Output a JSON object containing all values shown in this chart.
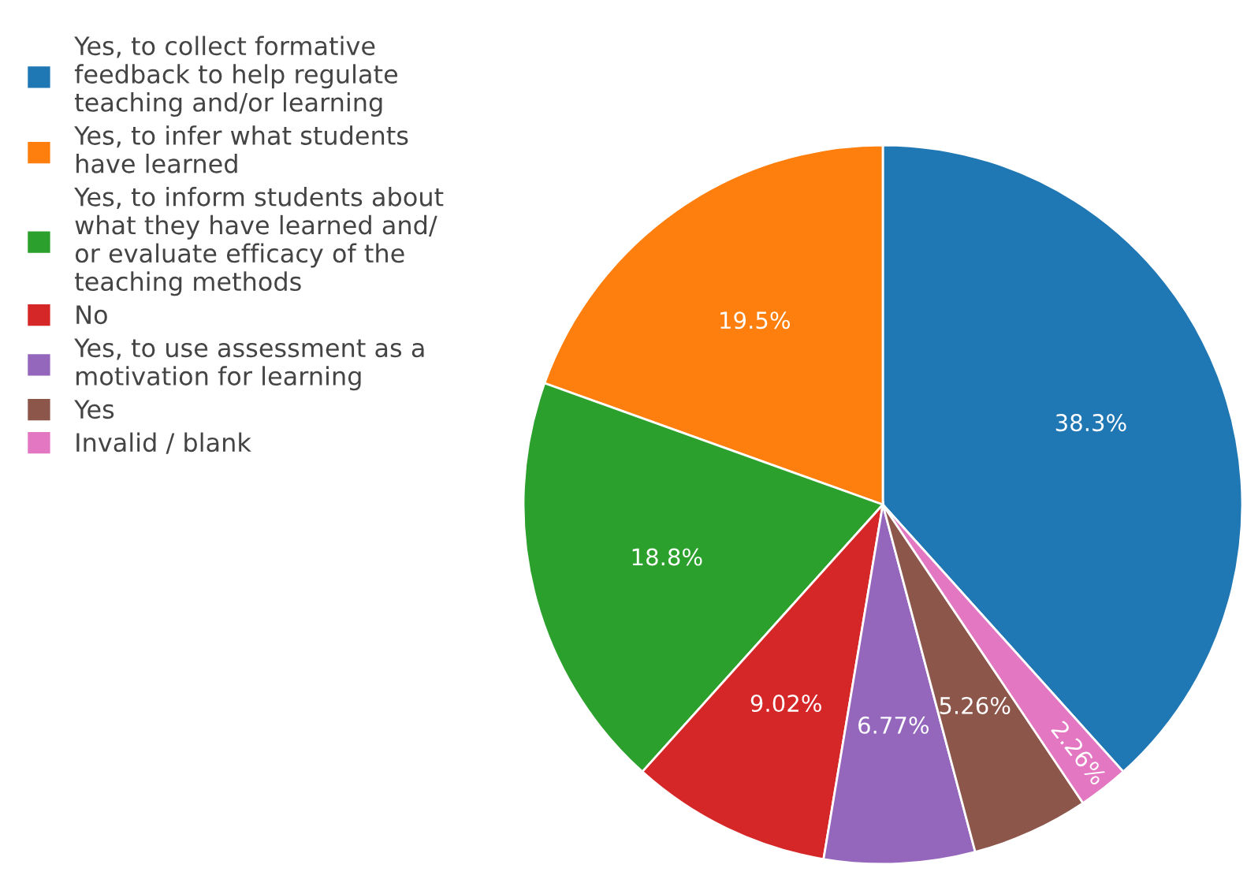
{
  "chart_data": {
    "type": "pie",
    "categories": [
      "Yes, to collect formative\nfeedback to help regulate\nteaching and/or learning",
      "Yes, to infer what students\nhave learned",
      "Yes, to inform students about\nwhat they have learned and/\nor evaluate efficacy of the\nteaching methods",
      "No",
      "Yes, to use assessment as a\nmotivation for learning",
      "Yes",
      "Invalid / blank"
    ],
    "values": [
      38.3,
      19.5,
      18.8,
      9.02,
      6.77,
      5.26,
      2.26
    ],
    "colors": [
      "#1f77b4",
      "#ff7f0e",
      "#2ca02c",
      "#d62728",
      "#9467bd",
      "#8c564b",
      "#e377c2"
    ],
    "value_labels": [
      "38.3%",
      "19.5%",
      "18.8%",
      "9.02%",
      "6.77%",
      "5.26%",
      "2.26%"
    ],
    "legend": "top left"
  }
}
